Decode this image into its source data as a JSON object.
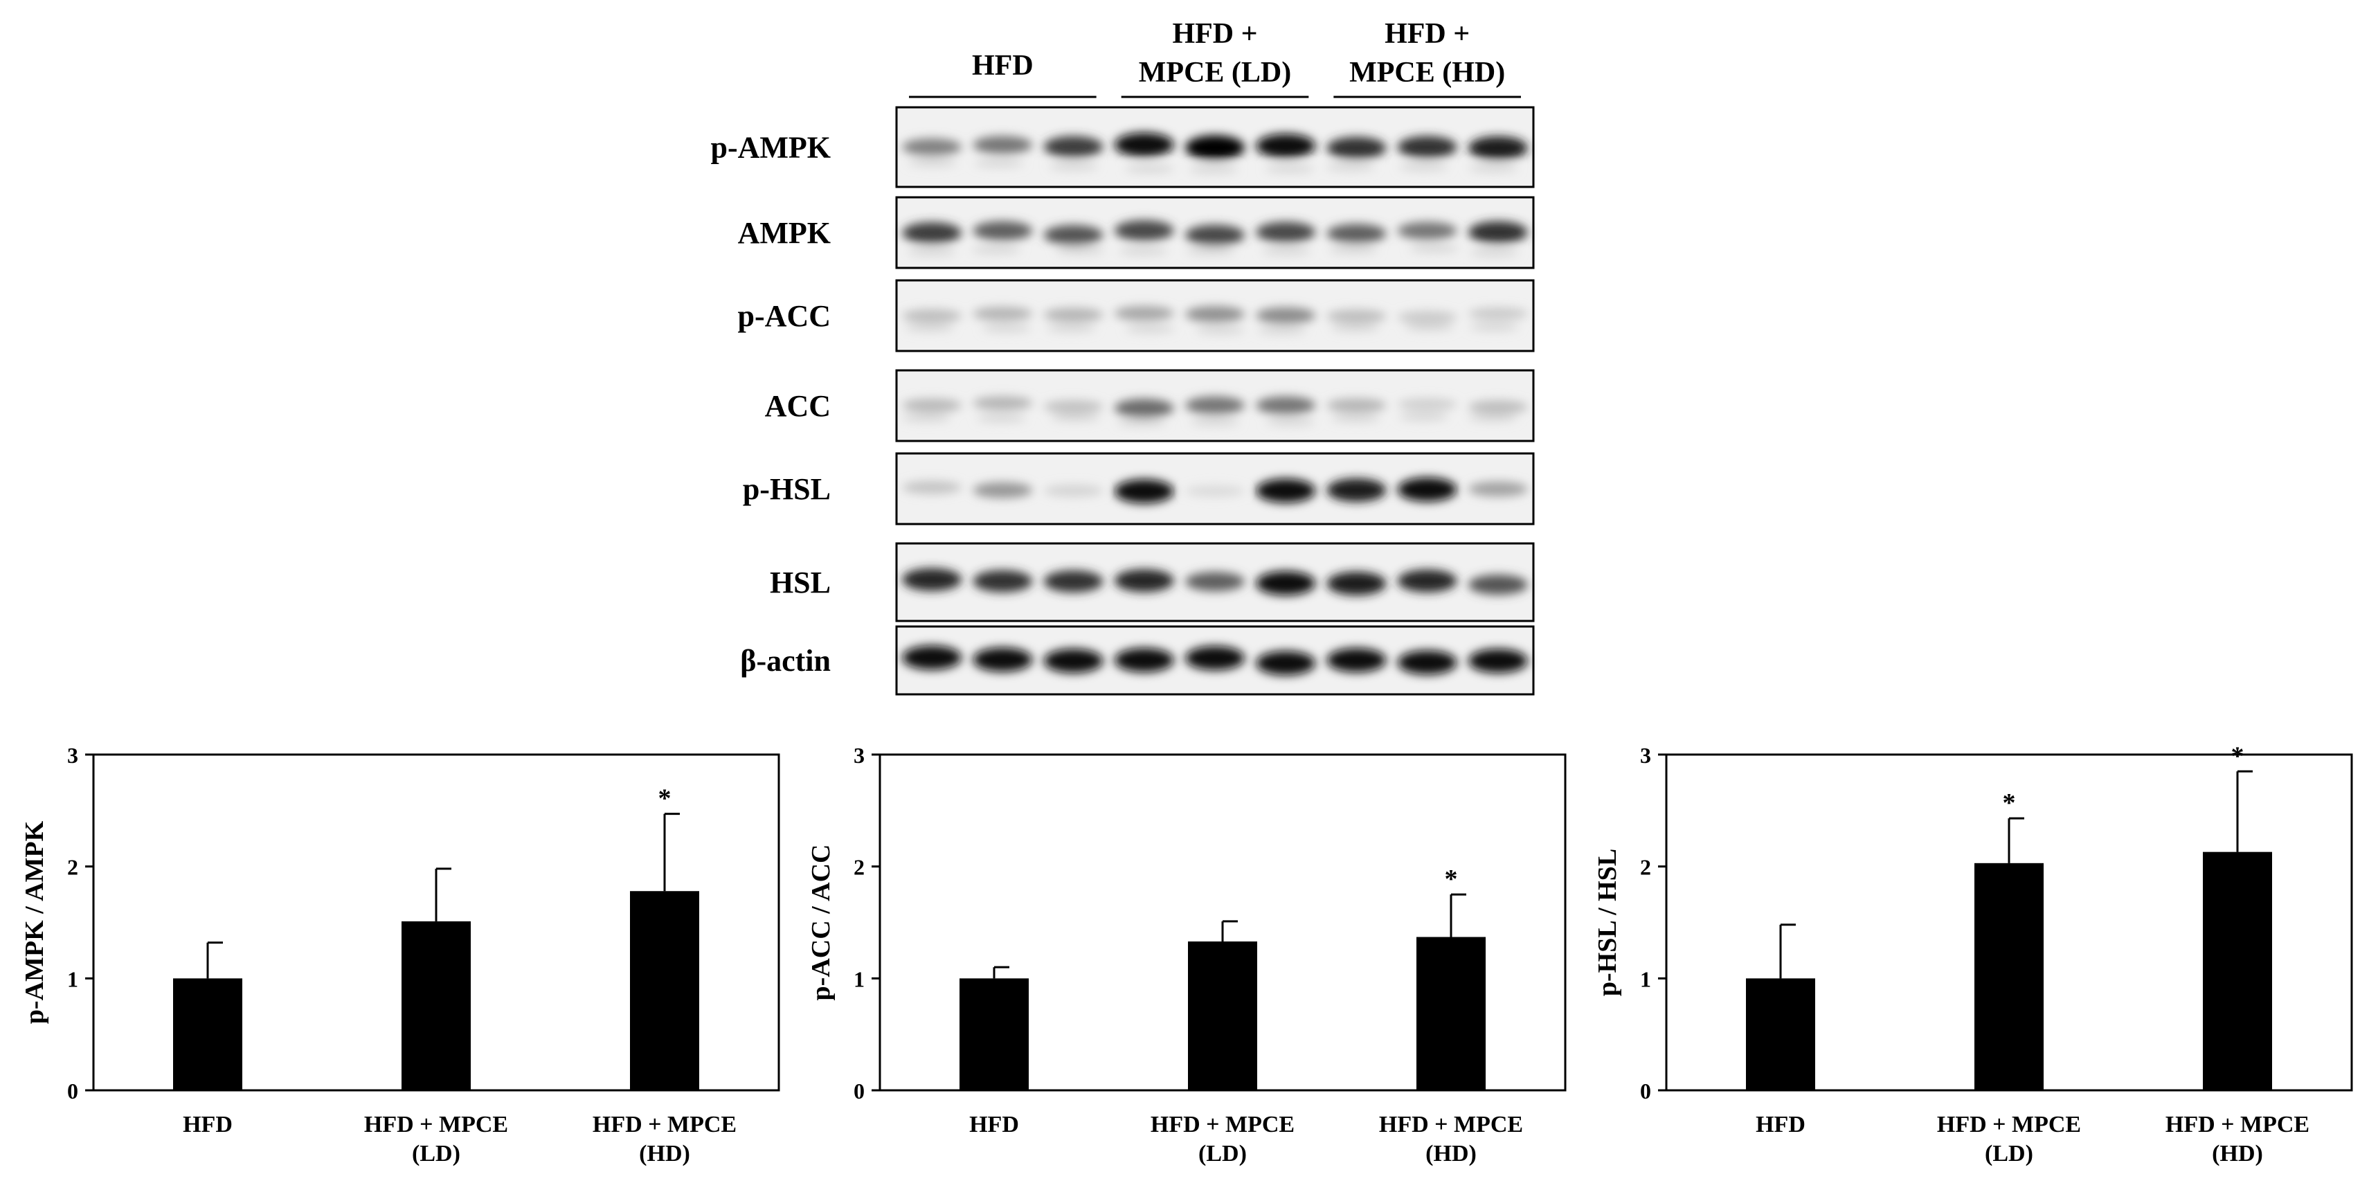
{
  "blot": {
    "groups": [
      {
        "lines": [
          "HFD"
        ]
      },
      {
        "lines": [
          "HFD +",
          "MPCE (LD)"
        ]
      },
      {
        "lines": [
          "HFD +",
          "MPCE (HD)"
        ]
      }
    ],
    "rows": [
      {
        "label": "p-AMPK",
        "lane_intensity": [
          0.45,
          0.5,
          0.75,
          0.95,
          1.0,
          0.95,
          0.8,
          0.8,
          0.9
        ],
        "noise": 0.2
      },
      {
        "label": "AMPK",
        "lane_intensity": [
          0.75,
          0.6,
          0.65,
          0.7,
          0.7,
          0.7,
          0.6,
          0.5,
          0.8
        ],
        "noise": 0.15
      },
      {
        "label": "p-ACC",
        "lane_intensity": [
          0.18,
          0.22,
          0.22,
          0.28,
          0.38,
          0.4,
          0.18,
          0.12,
          0.12
        ],
        "noise": 0.15
      },
      {
        "label": "ACC",
        "lane_intensity": [
          0.2,
          0.22,
          0.16,
          0.55,
          0.5,
          0.5,
          0.22,
          0.1,
          0.18
        ],
        "noise": 0.15
      },
      {
        "label": "p-HSL",
        "lane_intensity": [
          0.15,
          0.35,
          0.08,
          0.95,
          0.05,
          0.95,
          0.9,
          0.95,
          0.3
        ],
        "noise": 0.1
      },
      {
        "label": "HSL",
        "lane_intensity": [
          0.85,
          0.8,
          0.8,
          0.85,
          0.6,
          0.95,
          0.9,
          0.85,
          0.65
        ],
        "noise": 0.1
      },
      {
        "label": "β-actin",
        "lane_intensity": [
          0.95,
          0.95,
          0.95,
          0.95,
          0.95,
          0.95,
          0.95,
          0.95,
          0.95
        ],
        "noise": 0.05
      }
    ]
  },
  "chart_data": [
    {
      "type": "bar",
      "categories": [
        [
          "HFD"
        ],
        [
          "HFD + MPCE",
          "(LD)"
        ],
        [
          "HFD + MPCE",
          "(HD)"
        ]
      ],
      "values": [
        1.0,
        1.51,
        1.78
      ],
      "errors": [
        0.32,
        0.47,
        0.69
      ],
      "significance": [
        "",
        "",
        "*"
      ],
      "ylabel": "p-AMPK / AMPK",
      "ylim": [
        0,
        3
      ],
      "yticks": [
        0,
        1,
        2,
        3
      ],
      "color": "#000000"
    },
    {
      "type": "bar",
      "categories": [
        [
          "HFD"
        ],
        [
          "HFD + MPCE",
          "(LD)"
        ],
        [
          "HFD + MPCE",
          "(HD)"
        ]
      ],
      "values": [
        1.0,
        1.33,
        1.37
      ],
      "errors": [
        0.1,
        0.18,
        0.38
      ],
      "significance": [
        "",
        "",
        "*"
      ],
      "ylabel": "p-ACC / ACC",
      "ylim": [
        0,
        3
      ],
      "yticks": [
        0,
        1,
        2,
        3
      ],
      "color": "#000000"
    },
    {
      "type": "bar",
      "categories": [
        [
          "HFD"
        ],
        [
          "HFD + MPCE",
          "(LD)"
        ],
        [
          "HFD + MPCE",
          "(HD)"
        ]
      ],
      "values": [
        1.0,
        2.03,
        2.13
      ],
      "errors": [
        0.48,
        0.4,
        0.72
      ],
      "significance": [
        "",
        "*",
        "*"
      ],
      "ylabel": "p-HSL / HSL",
      "ylim": [
        0,
        3
      ],
      "yticks": [
        0,
        1,
        2,
        3
      ],
      "color": "#000000"
    }
  ]
}
